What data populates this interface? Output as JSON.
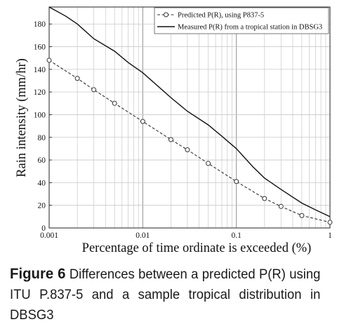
{
  "chart_data": {
    "type": "line",
    "title": "",
    "xlabel": "Percentage of time ordinate is exceeded (%)",
    "ylabel": "Rain intensity (mm/hr)",
    "xscale": "log",
    "xlim": [
      0.001,
      1
    ],
    "ylim": [
      0,
      195
    ],
    "grid": true,
    "legend_position": "top-right",
    "x_ticks": [
      "0.001",
      "0.01",
      "0.1",
      "1"
    ],
    "y_ticks": [
      "0",
      "20",
      "40",
      "60",
      "80",
      "100",
      "120",
      "140",
      "160",
      "180"
    ],
    "series": [
      {
        "name": "Predicted P(R), using P837-5",
        "style": "dashed-circle",
        "x": [
          0.001,
          0.002,
          0.003,
          0.005,
          0.01,
          0.02,
          0.03,
          0.05,
          0.1,
          0.2,
          0.3,
          0.5,
          1
        ],
        "y": [
          148,
          132,
          122,
          110,
          94,
          78,
          69,
          57,
          41,
          26,
          19,
          11,
          5
        ]
      },
      {
        "name": "Measured P(R) from a tropical station in DBSG3",
        "style": "solid",
        "x": [
          0.001,
          0.0015,
          0.002,
          0.003,
          0.005,
          0.007,
          0.01,
          0.02,
          0.03,
          0.05,
          0.07,
          0.1,
          0.15,
          0.2,
          0.3,
          0.5,
          0.7,
          1
        ],
        "y": [
          195,
          187,
          180,
          167,
          156,
          146,
          137,
          115,
          103,
          91,
          81,
          70,
          54,
          44,
          34,
          22,
          16,
          10
        ]
      }
    ]
  },
  "caption": {
    "label": "Figure 6",
    "text": "Differences between a predicted P(R) using ITU P.837-5 and a sample tropical distribution in DBSG3"
  }
}
